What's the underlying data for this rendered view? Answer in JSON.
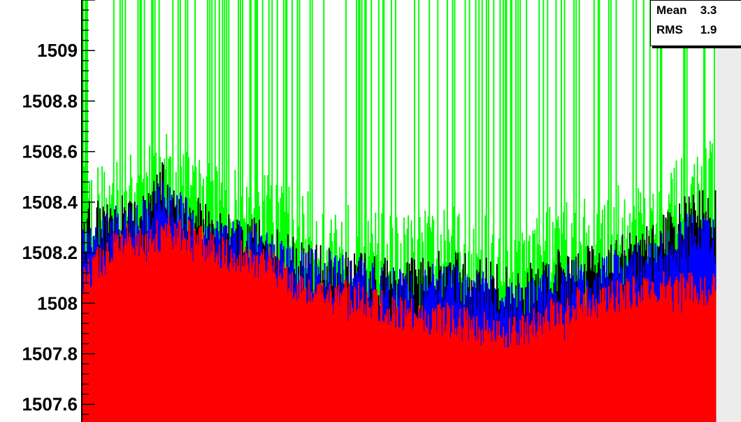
{
  "chart_data": {
    "type": "bar",
    "title": "",
    "xlabel": "",
    "ylabel": "",
    "ylim": [
      1507.53,
      1509.2
    ],
    "yticks": [
      {
        "value": 1509.0,
        "label": "1509"
      },
      {
        "value": 1508.8,
        "label": "1508.8"
      },
      {
        "value": 1508.6,
        "label": "1508.6"
      },
      {
        "value": 1508.4,
        "label": "1508.4"
      },
      {
        "value": 1508.2,
        "label": "1508.2"
      },
      {
        "value": 1508.0,
        "label": "1508"
      },
      {
        "value": 1507.8,
        "label": "1507.8"
      },
      {
        "value": 1507.6,
        "label": "1507.6"
      }
    ],
    "bins": 600,
    "draw_order": [
      "green",
      "black",
      "blue",
      "red"
    ],
    "series": [
      {
        "key": "red",
        "color": "#ff0000",
        "anchors": [
          [
            0,
            1508.1
          ],
          [
            20,
            1508.18
          ],
          [
            40,
            1508.25
          ],
          [
            60,
            1508.22
          ],
          [
            75,
            1508.28
          ],
          [
            95,
            1508.27
          ],
          [
            120,
            1508.22
          ],
          [
            150,
            1508.18
          ],
          [
            175,
            1508.16
          ],
          [
            200,
            1508.08
          ],
          [
            230,
            1508.03
          ],
          [
            260,
            1508.02
          ],
          [
            290,
            1507.97
          ],
          [
            320,
            1507.95
          ],
          [
            350,
            1507.93
          ],
          [
            380,
            1507.9
          ],
          [
            410,
            1507.88
          ],
          [
            440,
            1507.95
          ],
          [
            470,
            1508.0
          ],
          [
            500,
            1508.02
          ],
          [
            530,
            1508.05
          ],
          [
            560,
            1508.06
          ],
          [
            580,
            1508.06
          ],
          [
            599,
            1508.05
          ]
        ]
      },
      {
        "key": "blue",
        "color": "#0000ff",
        "anchors": [
          [
            0,
            1508.2
          ],
          [
            20,
            1508.25
          ],
          [
            40,
            1508.3
          ],
          [
            60,
            1508.3
          ],
          [
            75,
            1508.4
          ],
          [
            95,
            1508.32
          ],
          [
            120,
            1508.25
          ],
          [
            150,
            1508.22
          ],
          [
            175,
            1508.2
          ],
          [
            200,
            1508.12
          ],
          [
            230,
            1508.1
          ],
          [
            260,
            1508.08
          ],
          [
            290,
            1508.04
          ],
          [
            320,
            1508.05
          ],
          [
            350,
            1508.05
          ],
          [
            380,
            1508.02
          ],
          [
            410,
            1507.97
          ],
          [
            440,
            1508.05
          ],
          [
            470,
            1508.07
          ],
          [
            500,
            1508.1
          ],
          [
            530,
            1508.15
          ],
          [
            560,
            1508.2
          ],
          [
            580,
            1508.28
          ],
          [
            599,
            1508.25
          ]
        ]
      },
      {
        "key": "black",
        "color": "#000000",
        "anchors": [
          [
            0,
            1508.3
          ],
          [
            20,
            1508.3
          ],
          [
            40,
            1508.32
          ],
          [
            60,
            1508.33
          ],
          [
            75,
            1508.45
          ],
          [
            95,
            1508.35
          ],
          [
            120,
            1508.28
          ],
          [
            150,
            1508.25
          ],
          [
            175,
            1508.22
          ],
          [
            200,
            1508.15
          ],
          [
            230,
            1508.12
          ],
          [
            260,
            1508.1
          ],
          [
            290,
            1508.08
          ],
          [
            320,
            1508.1
          ],
          [
            350,
            1508.1
          ],
          [
            380,
            1508.08
          ],
          [
            410,
            1508.02
          ],
          [
            440,
            1508.1
          ],
          [
            470,
            1508.12
          ],
          [
            500,
            1508.15
          ],
          [
            530,
            1508.2
          ],
          [
            560,
            1508.28
          ],
          [
            580,
            1508.35
          ],
          [
            599,
            1508.35
          ]
        ]
      },
      {
        "key": "green",
        "color": "#00ff00",
        "anchors": [
          [
            0,
            1508.35
          ],
          [
            20,
            1508.35
          ],
          [
            40,
            1508.38
          ],
          [
            60,
            1508.4
          ],
          [
            75,
            1508.5
          ],
          [
            95,
            1508.42
          ],
          [
            120,
            1508.38
          ],
          [
            150,
            1508.32
          ],
          [
            175,
            1508.3
          ],
          [
            200,
            1508.25
          ],
          [
            230,
            1508.22
          ],
          [
            260,
            1508.18
          ],
          [
            290,
            1508.15
          ],
          [
            320,
            1508.16
          ],
          [
            350,
            1508.18
          ],
          [
            380,
            1508.15
          ],
          [
            410,
            1508.08
          ],
          [
            440,
            1508.18
          ],
          [
            470,
            1508.2
          ],
          [
            500,
            1508.25
          ],
          [
            530,
            1508.3
          ],
          [
            560,
            1508.35
          ],
          [
            580,
            1508.4
          ],
          [
            599,
            1508.45
          ]
        ]
      }
    ]
  },
  "stats": {
    "mean_label": "Mean",
    "mean_value": "3.3",
    "rms_label": "RMS",
    "rms_value": "1.9"
  }
}
